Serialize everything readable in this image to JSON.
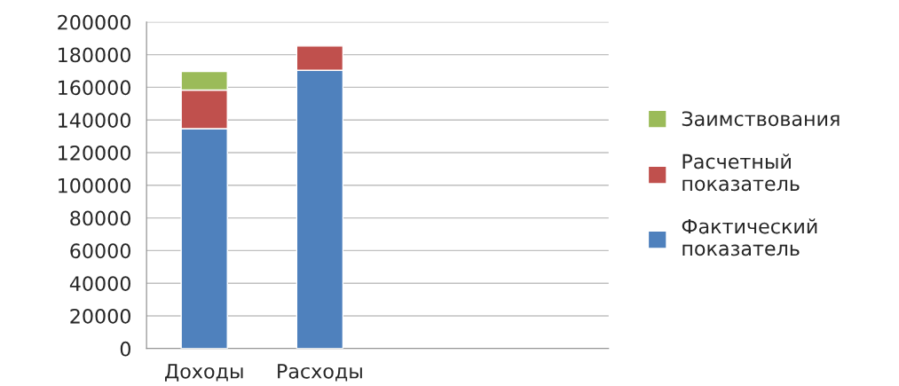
{
  "chart_data": {
    "type": "bar",
    "stacked": true,
    "categories": [
      "Доходы",
      "Расходы",
      null,
      null
    ],
    "series": [
      {
        "name": "Фактический показатель",
        "color": "#4f81bd",
        "values": [
          134700,
          170400,
          null,
          null
        ]
      },
      {
        "name": "Расчетный показатель",
        "color": "#c0504d",
        "values": [
          23600,
          14900,
          null,
          null
        ]
      },
      {
        "name": "Заимствования",
        "color": "#9bbb59",
        "values": [
          11400,
          null,
          null,
          null
        ]
      }
    ],
    "ylim": [
      0,
      200000
    ],
    "yticks": [
      0,
      20000,
      40000,
      60000,
      80000,
      100000,
      120000,
      140000,
      160000,
      180000,
      200000
    ],
    "grid": "y",
    "legend": "right"
  }
}
